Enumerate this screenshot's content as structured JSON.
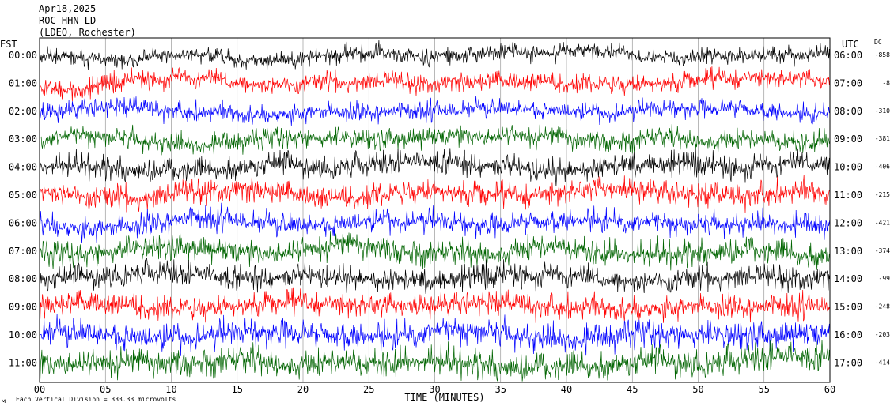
{
  "header": {
    "date": "Apr18,2025",
    "station": "ROC HHN LD --",
    "network": "(LDEO, Rochester)"
  },
  "left_axis_label": "EST",
  "right_axis_label": "UTC",
  "dc_label": "DC",
  "footer_note": "Each Vertical Division =  333.33 microvolts",
  "footer_mark": "м",
  "chart_data": {
    "type": "line",
    "title": "",
    "xlabel": "TIME (MINUTES)",
    "ylabel": "",
    "xlim": [
      0,
      60
    ],
    "x_ticks": [
      "00",
      "05",
      "10",
      "15",
      "20",
      "25",
      "30",
      "35",
      "40",
      "45",
      "50",
      "55",
      "60"
    ],
    "grid": true,
    "colors": [
      "#000000",
      "#ff0000",
      "#0000ff",
      "#006400"
    ],
    "traces": [
      {
        "est": "00:00",
        "utc": "06:00",
        "dc": "-858",
        "color": "#000000",
        "amp": 7
      },
      {
        "est": "01:00",
        "utc": "07:00",
        "dc": "-8",
        "color": "#ff0000",
        "amp": 8
      },
      {
        "est": "02:00",
        "utc": "08:00",
        "dc": "-310",
        "color": "#0000ff",
        "amp": 8
      },
      {
        "est": "03:00",
        "utc": "09:00",
        "dc": "-381",
        "color": "#006400",
        "amp": 9
      },
      {
        "est": "04:00",
        "utc": "10:00",
        "dc": "-406",
        "color": "#000000",
        "amp": 10
      },
      {
        "est": "05:00",
        "utc": "11:00",
        "dc": "-215",
        "color": "#ff0000",
        "amp": 10
      },
      {
        "est": "06:00",
        "utc": "12:00",
        "dc": "-421",
        "color": "#0000ff",
        "amp": 10
      },
      {
        "est": "07:00",
        "utc": "13:00",
        "dc": "-374",
        "color": "#006400",
        "amp": 11
      },
      {
        "est": "08:00",
        "utc": "14:00",
        "dc": "-99",
        "color": "#000000",
        "amp": 10
      },
      {
        "est": "09:00",
        "utc": "15:00",
        "dc": "-248",
        "color": "#ff0000",
        "amp": 10
      },
      {
        "est": "10:00",
        "utc": "16:00",
        "dc": "-203",
        "color": "#0000ff",
        "amp": 12
      },
      {
        "est": "11:00",
        "utc": "17:00",
        "dc": "-414",
        "color": "#006400",
        "amp": 12
      }
    ]
  }
}
